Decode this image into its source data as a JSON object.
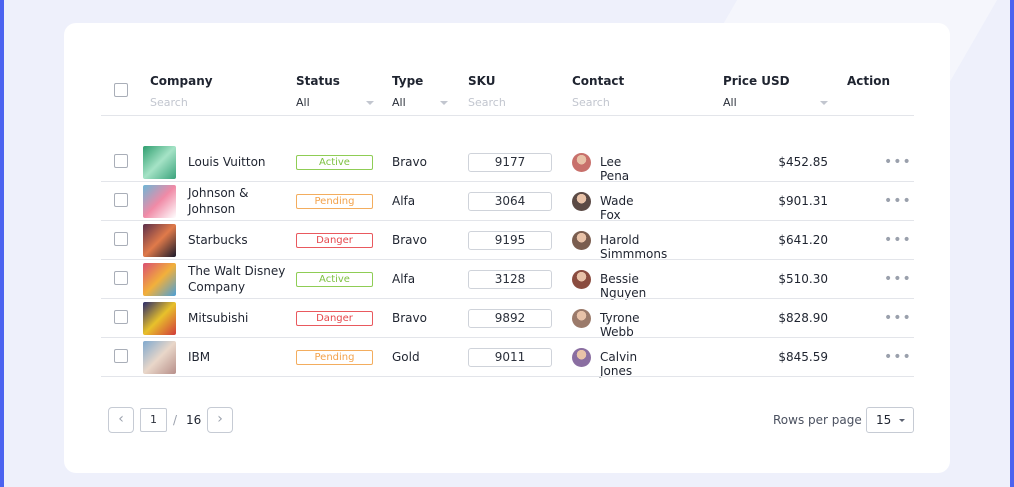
{
  "table": {
    "columns": {
      "company": "Company",
      "status": "Status",
      "type": "Type",
      "sku": "SKU",
      "contact": "Contact",
      "price": "Price USD",
      "action": "Action"
    },
    "filters": {
      "company_placeholder": "Search",
      "status_value": "All",
      "type_value": "All",
      "sku_placeholder": "Search",
      "contact_placeholder": "Search",
      "price_value": "All"
    },
    "rows": [
      {
        "company": "Louis Vuitton",
        "status": "Active",
        "status_kind": "active",
        "type": "Bravo",
        "sku": "9177",
        "contact": "Lee Pena",
        "price": "$452.85",
        "thumb_colors": [
          "#2f9e6f",
          "#a5e3c6",
          "#3aa27c"
        ],
        "avatar_color": "#c8706b"
      },
      {
        "company": "Johnson & Johnson",
        "status": "Pending",
        "status_kind": "pending",
        "type": "Alfa",
        "sku": "3064",
        "contact": "Wade Fox",
        "price": "$901.31",
        "thumb_colors": [
          "#6cb6d6",
          "#f08aa6",
          "#ffffff"
        ],
        "avatar_color": "#5b4a45"
      },
      {
        "company": "Starbucks",
        "status": "Danger",
        "status_kind": "danger",
        "type": "Bravo",
        "sku": "9195",
        "contact": "Harold Simmmons",
        "price": "$641.20",
        "thumb_colors": [
          "#5b2f4a",
          "#e07a4a",
          "#1b1a2c"
        ],
        "avatar_color": "#7a5d4f"
      },
      {
        "company": "The Walt Disney Company",
        "status": "Active",
        "status_kind": "active",
        "type": "Alfa",
        "sku": "3128",
        "contact": "Bessie Nguyen",
        "price": "$510.30",
        "thumb_colors": [
          "#d94f72",
          "#f2b03b",
          "#4a9fd8"
        ],
        "avatar_color": "#8a4c3f"
      },
      {
        "company": "Mitsubishi",
        "status": "Danger",
        "status_kind": "danger",
        "type": "Bravo",
        "sku": "9892",
        "contact": "Tyrone Webb",
        "price": "$828.90",
        "thumb_colors": [
          "#2a2a6a",
          "#e8c12b",
          "#d13b3b"
        ],
        "avatar_color": "#9b7a6a"
      },
      {
        "company": "IBM",
        "status": "Pending",
        "status_kind": "pending",
        "type": "Gold",
        "sku": "9011",
        "contact": "Calvin Jones",
        "price": "$845.59",
        "thumb_colors": [
          "#7fa9cf",
          "#e9d7c9",
          "#b78f8a"
        ],
        "avatar_color": "#8a6ea1"
      }
    ]
  },
  "pagination": {
    "prev_icon": "chevron-left-icon",
    "next_icon": "chevron-right-icon",
    "current_page": "1",
    "separator": "/",
    "total_pages": "16",
    "rows_per_page_label": "Rows per page",
    "rows_per_page_value": "15"
  },
  "colors": {
    "accent_frame": "#4b63f0",
    "active": "#7ec142",
    "pending": "#f3a24a",
    "danger": "#e5484d"
  }
}
